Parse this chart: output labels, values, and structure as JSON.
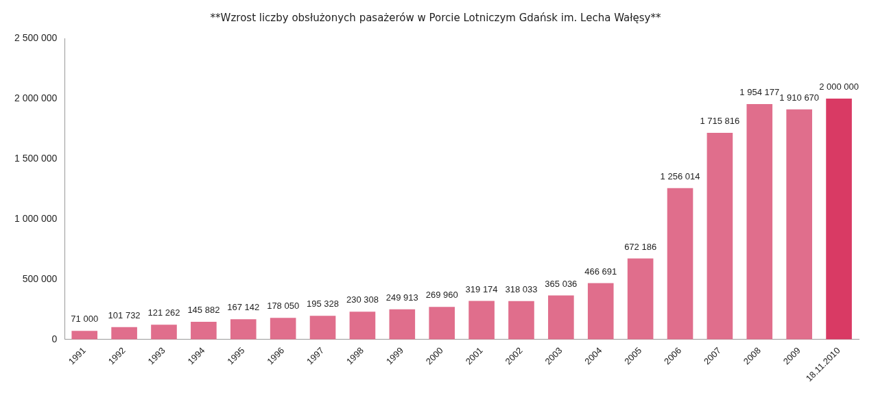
{
  "chart_data": {
    "type": "bar",
    "title": "**Wzrost liczby obsłużonych pasażerów w Porcie Lotniczym Gdańsk im. Lecha Wałęsy**",
    "categories": [
      "1991",
      "1992",
      "1993",
      "1994",
      "1995",
      "1996",
      "1997",
      "1998",
      "1999",
      "2000",
      "2001",
      "2002",
      "2003",
      "2004",
      "2005",
      "2006",
      "2007",
      "2008",
      "2009",
      "18.11.2010"
    ],
    "values": [
      71000,
      101732,
      121262,
      145882,
      167142,
      178050,
      195328,
      230308,
      249913,
      269960,
      319174,
      318033,
      365036,
      466691,
      672186,
      1256014,
      1715816,
      1954177,
      1910670,
      2000000
    ],
    "value_labels": [
      "71 000",
      "101 732",
      "121 262",
      "145 882",
      "167 142",
      "178 050",
      "195 328",
      "230 308",
      "249 913",
      "269 960",
      "319 174",
      "318 033",
      "365 036",
      "466 691",
      "672 186",
      "1 256 014",
      "1 715 816",
      "1 954 177",
      "1 910 670",
      "2 000 000"
    ],
    "colors": [
      "#e06e8c",
      "#e06e8c",
      "#e06e8c",
      "#e06e8c",
      "#e06e8c",
      "#e06e8c",
      "#e06e8c",
      "#e06e8c",
      "#e06e8c",
      "#e06e8c",
      "#e06e8c",
      "#e06e8c",
      "#e06e8c",
      "#e06e8c",
      "#e06e8c",
      "#e06e8c",
      "#e06e8c",
      "#e06e8c",
      "#e06e8c",
      "#d93a64"
    ],
    "ylim": [
      0,
      2500000
    ],
    "yticks": [
      0,
      {
        "value": 500000,
        "label": "500 000"
      },
      {
        "value": 1000000,
        "label": "1 000 000"
      },
      {
        "value": 1500000,
        "label": "1 500 000"
      },
      {
        "value": 2000000,
        "label": "2 000 000"
      },
      {
        "value": 2500000,
        "label": "2 500 000"
      }
    ],
    "grid": false,
    "legend": false
  }
}
